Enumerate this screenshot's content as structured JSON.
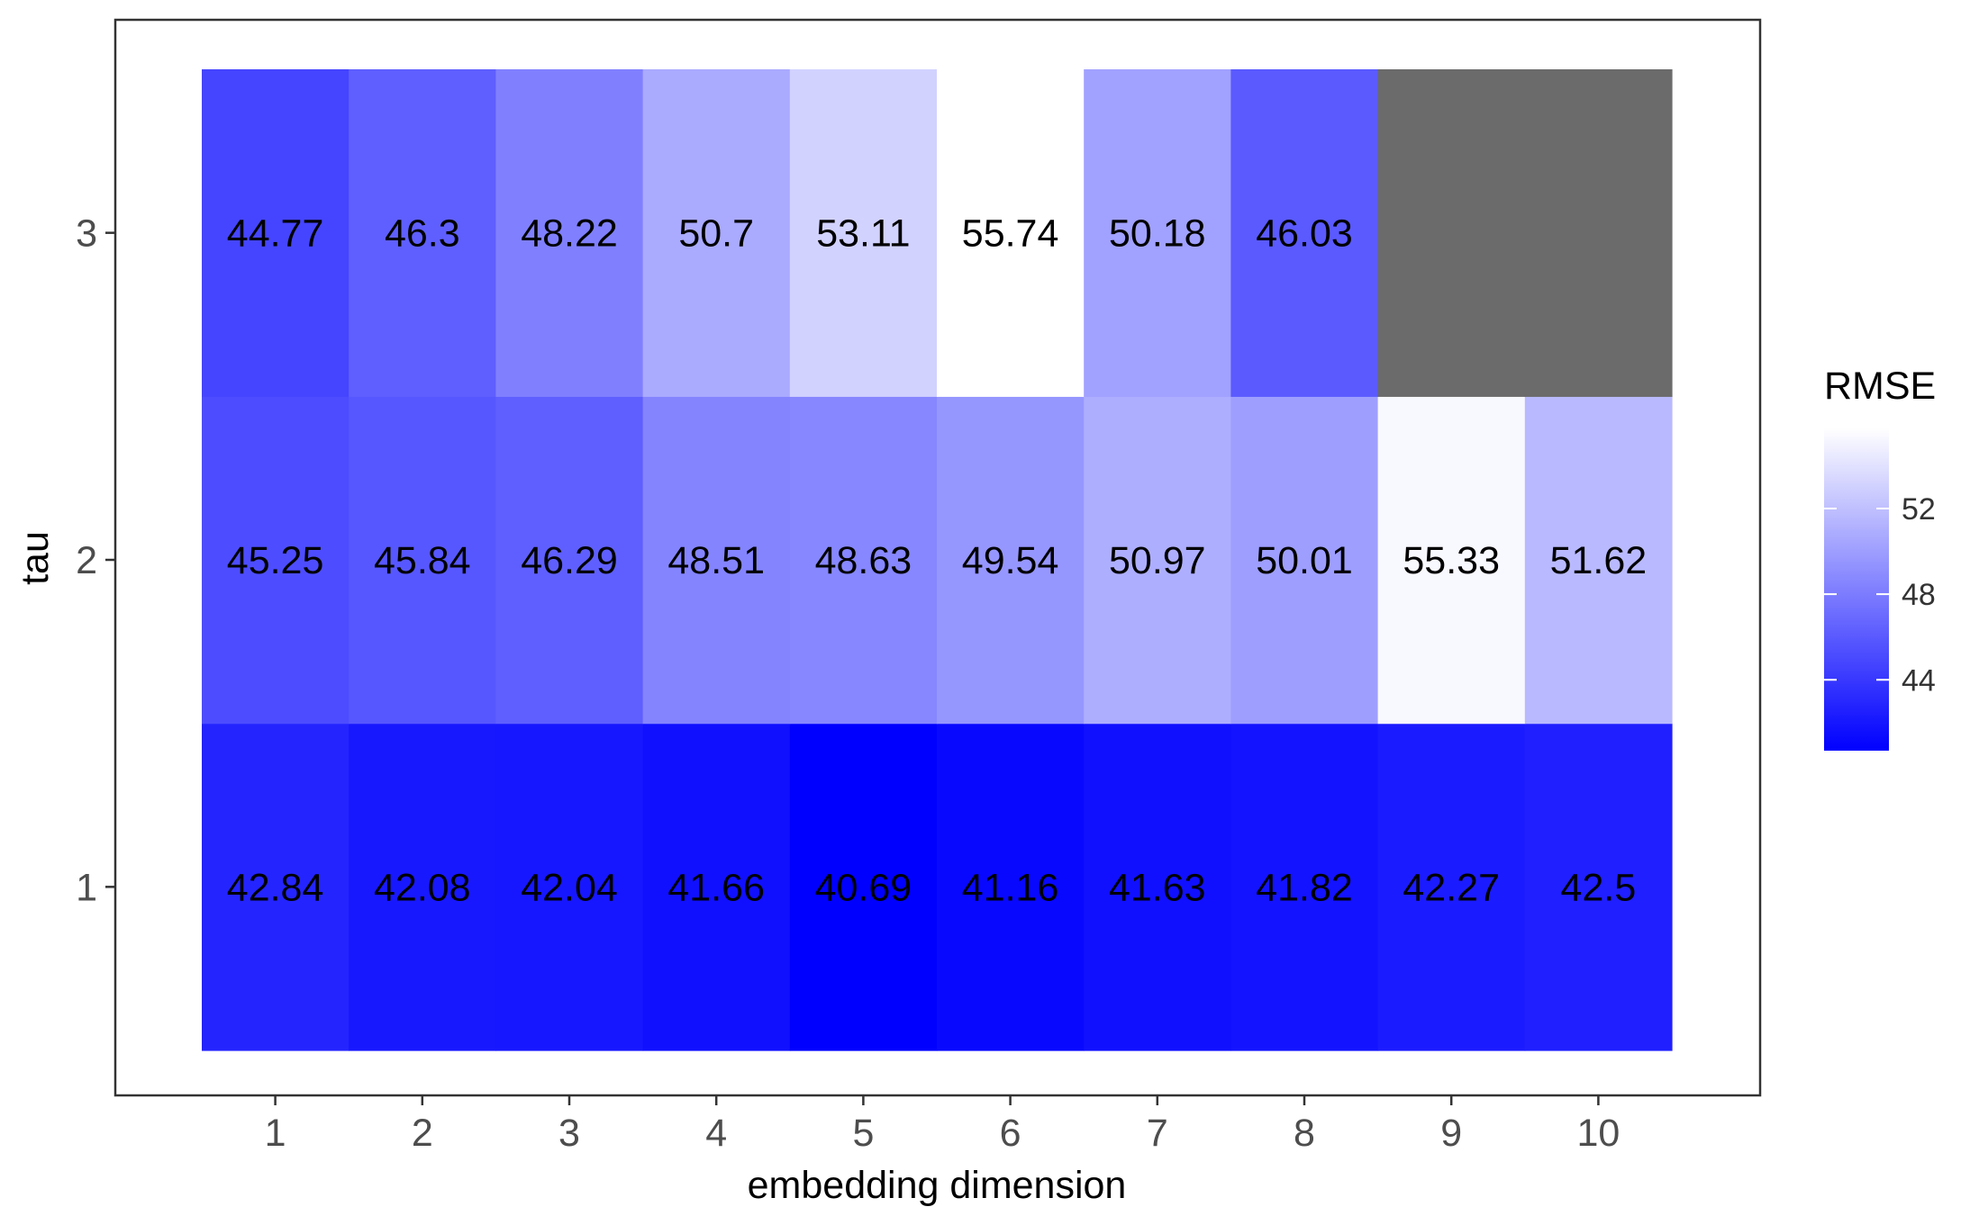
{
  "chart_data": {
    "type": "heatmap",
    "title": "",
    "xlabel": "embedding dimension",
    "ylabel": "tau",
    "x_categories": [
      "1",
      "2",
      "3",
      "4",
      "5",
      "6",
      "7",
      "8",
      "9",
      "10"
    ],
    "y_categories": [
      "1",
      "2",
      "3"
    ],
    "values": [
      [
        42.84,
        42.08,
        42.04,
        41.66,
        40.69,
        41.16,
        41.63,
        41.82,
        42.27,
        42.5
      ],
      [
        45.25,
        45.84,
        46.29,
        48.51,
        48.63,
        49.54,
        50.97,
        50.01,
        55.33,
        51.62
      ],
      [
        44.77,
        46.3,
        48.22,
        50.7,
        53.11,
        55.74,
        50.18,
        46.03,
        null,
        null
      ]
    ],
    "cell_labels": [
      [
        "42.84",
        "42.08",
        "42.04",
        "41.66",
        "40.69",
        "41.16",
        "41.63",
        "41.82",
        "42.27",
        "42.5"
      ],
      [
        "45.25",
        "45.84",
        "46.29",
        "48.51",
        "48.63",
        "49.54",
        "50.97",
        "50.01",
        "55.33",
        "51.62"
      ],
      [
        "44.77",
        "46.3",
        "48.22",
        "50.7",
        "53.11",
        "55.74",
        "50.18",
        "46.03",
        "",
        ""
      ]
    ],
    "color_scale": {
      "low_color": "#0000ff",
      "high_color": "#ffffff",
      "na_color": "#6b6b6b",
      "range": [
        40.69,
        55.74
      ]
    },
    "legend": {
      "title": "RMSE",
      "placement": "right",
      "ticks": [
        44,
        48,
        52
      ]
    },
    "grid": false
  }
}
